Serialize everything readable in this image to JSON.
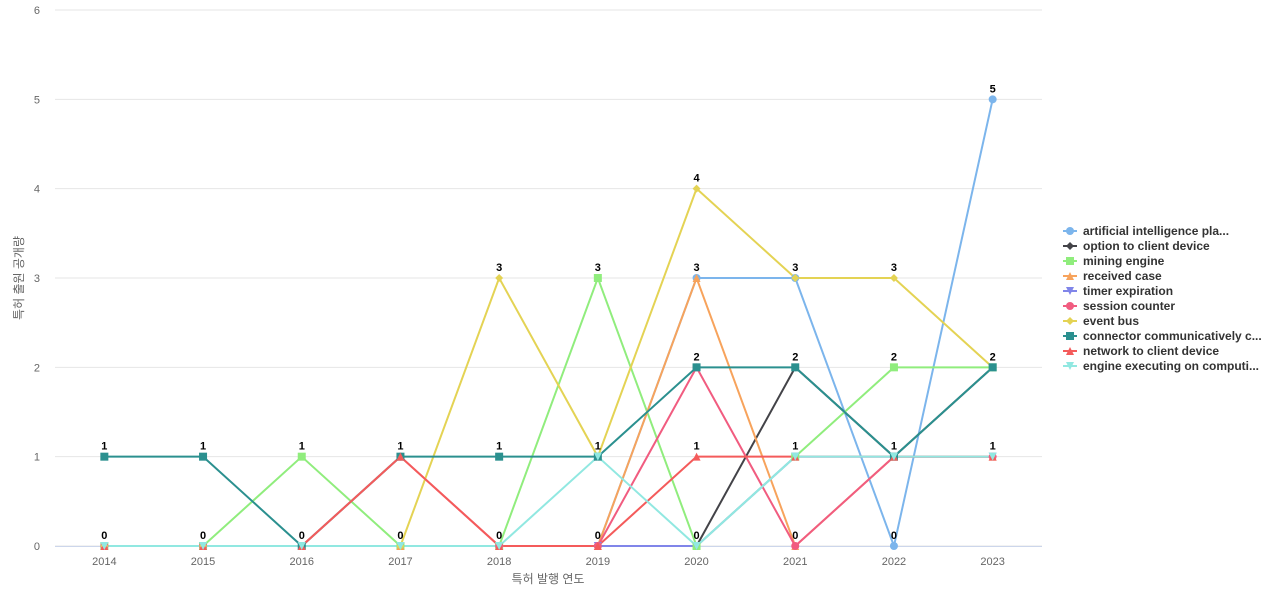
{
  "chart_data": {
    "type": "line",
    "x_label": "특허 발행 연도",
    "y_label": "특허 출원 공개량",
    "categories": [
      "2014",
      "2015",
      "2016",
      "2017",
      "2018",
      "2019",
      "2020",
      "2021",
      "2022",
      "2023"
    ],
    "ylim": [
      0,
      6
    ],
    "yticks": [
      0,
      1,
      2,
      3,
      4,
      5,
      6
    ],
    "grid": true,
    "series": [
      {
        "name": "artificial intelligence pla...",
        "color": "#7cb5ec",
        "symbol": "circle",
        "values": [
          0,
          0,
          0,
          0,
          0,
          0,
          3,
          3,
          0,
          5
        ]
      },
      {
        "name": "option to client device",
        "color": "#434348",
        "symbol": "diamond",
        "values": [
          0,
          0,
          0,
          0,
          0,
          0,
          0,
          2,
          1,
          2
        ]
      },
      {
        "name": "mining engine",
        "color": "#90ed7d",
        "symbol": "square",
        "values": [
          0,
          0,
          1,
          0,
          0,
          3,
          0,
          1,
          2,
          2
        ]
      },
      {
        "name": "received case",
        "color": "#f7a35c",
        "symbol": "triangle",
        "values": [
          0,
          0,
          0,
          0,
          0,
          0,
          3,
          0,
          1,
          1
        ]
      },
      {
        "name": "timer expiration",
        "color": "#8085e9",
        "symbol": "triangle-down",
        "values": [
          0,
          0,
          0,
          0,
          0,
          0,
          0,
          1,
          1,
          1
        ]
      },
      {
        "name": "session counter",
        "color": "#f15c80",
        "symbol": "circle",
        "values": [
          0,
          0,
          0,
          1,
          0,
          0,
          2,
          0,
          1,
          1
        ]
      },
      {
        "name": "event bus",
        "color": "#e4d354",
        "symbol": "diamond",
        "values": [
          0,
          0,
          0,
          0,
          3,
          1,
          4,
          3,
          3,
          2
        ]
      },
      {
        "name": "connector communicatively c...",
        "color": "#2b908f",
        "symbol": "square",
        "values": [
          1,
          1,
          0,
          1,
          1,
          1,
          2,
          2,
          1,
          2
        ]
      },
      {
        "name": "network to client device",
        "color": "#f45b5b",
        "symbol": "triangle",
        "values": [
          0,
          0,
          0,
          1,
          0,
          0,
          1,
          1,
          1,
          1
        ]
      },
      {
        "name": "engine executing on computi...",
        "color": "#91e8e1",
        "symbol": "triangle-down",
        "values": [
          0,
          0,
          0,
          0,
          0,
          1,
          0,
          1,
          1,
          1
        ]
      }
    ]
  }
}
